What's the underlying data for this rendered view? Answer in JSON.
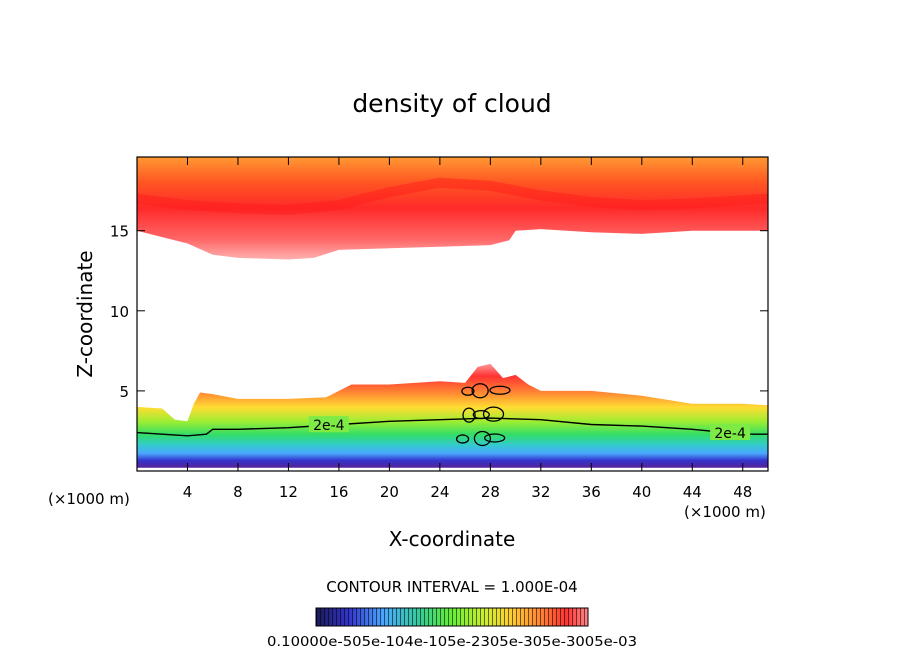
{
  "chart_data": {
    "type": "contour",
    "title": "density of cloud",
    "xlabel": "X-coordinate",
    "ylabel": "Z-coordinate",
    "x_unit_left": "(×1000 m)",
    "x_unit_right": "(×1000 m)",
    "xlim": [
      0,
      50
    ],
    "ylim": [
      0,
      19.6
    ],
    "x_ticks": [
      4,
      8,
      12,
      16,
      20,
      24,
      28,
      32,
      36,
      40,
      44,
      48
    ],
    "y_ticks": [
      5,
      10,
      15
    ],
    "contour_interval_label": "CONTOUR INTERVAL = 1.000E-04",
    "contour_labels": [
      "2e-4",
      "2e-4"
    ],
    "colorbar_label": "0.10000e-505e-104e-105e-2305e-305e-3005e-03",
    "colorbar_stops": [
      "#1a1a66",
      "#3333cc",
      "#4aa8ff",
      "#33cc66",
      "#66ee33",
      "#ccee33",
      "#ffcc33",
      "#ff8833",
      "#ff3333",
      "#ff8888"
    ],
    "layers": {
      "upper": {
        "z_top": 19.6,
        "base": [
          [
            0,
            15.0
          ],
          [
            2,
            14.6
          ],
          [
            4,
            14.2
          ],
          [
            6,
            13.5
          ],
          [
            8,
            13.3
          ],
          [
            12,
            13.2
          ],
          [
            14,
            13.3
          ],
          [
            16,
            13.8
          ],
          [
            20,
            13.9
          ],
          [
            24,
            14.0
          ],
          [
            28,
            14.1
          ],
          [
            29.5,
            14.4
          ],
          [
            30,
            15.0
          ],
          [
            32,
            15.1
          ],
          [
            36,
            14.9
          ],
          [
            40,
            14.8
          ],
          [
            44,
            15.0
          ],
          [
            48,
            15.0
          ],
          [
            50,
            15.0
          ]
        ],
        "core": [
          [
            0,
            17.0
          ],
          [
            4,
            16.6
          ],
          [
            8,
            16.4
          ],
          [
            12,
            16.3
          ],
          [
            16,
            16.6
          ],
          [
            20,
            17.4
          ],
          [
            24,
            18.0
          ],
          [
            28,
            17.8
          ],
          [
            32,
            17.2
          ],
          [
            36,
            16.8
          ],
          [
            40,
            16.6
          ],
          [
            44,
            16.7
          ],
          [
            48,
            16.9
          ],
          [
            50,
            17.0
          ]
        ]
      },
      "lower": {
        "top": [
          [
            0,
            4.0
          ],
          [
            2,
            3.9
          ],
          [
            3,
            3.2
          ],
          [
            4,
            3.1
          ],
          [
            4.5,
            4.2
          ],
          [
            5,
            4.9
          ],
          [
            6,
            4.8
          ],
          [
            8,
            4.5
          ],
          [
            12,
            4.5
          ],
          [
            15,
            4.6
          ],
          [
            16,
            5.0
          ],
          [
            17,
            5.4
          ],
          [
            20,
            5.4
          ],
          [
            24,
            5.6
          ],
          [
            26,
            5.5
          ],
          [
            27,
            6.5
          ],
          [
            28,
            6.7
          ],
          [
            29,
            5.8
          ],
          [
            30,
            6.0
          ],
          [
            31,
            5.4
          ],
          [
            32,
            5.0
          ],
          [
            36,
            5.0
          ],
          [
            40,
            4.7
          ],
          [
            44,
            4.2
          ],
          [
            48,
            4.2
          ],
          [
            50,
            4.1
          ]
        ],
        "contour_2e4": [
          [
            0,
            2.4
          ],
          [
            4,
            2.2
          ],
          [
            5.5,
            2.3
          ],
          [
            6,
            2.6
          ],
          [
            8,
            2.6
          ],
          [
            12,
            2.7
          ],
          [
            16,
            2.9
          ],
          [
            20,
            3.1
          ],
          [
            24,
            3.2
          ],
          [
            28,
            3.3
          ],
          [
            32,
            3.2
          ],
          [
            36,
            2.9
          ],
          [
            40,
            2.8
          ],
          [
            44,
            2.6
          ],
          [
            48,
            2.3
          ],
          [
            50,
            2.3
          ]
        ],
        "bottom": [
          [
            0,
            0.2
          ],
          [
            50,
            0.2
          ]
        ]
      }
    }
  }
}
